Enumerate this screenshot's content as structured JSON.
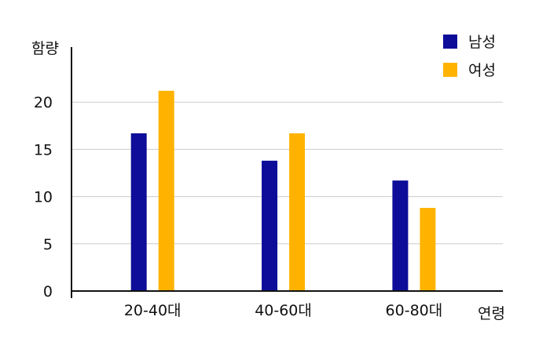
{
  "chart_data": {
    "type": "bar",
    "categories": [
      "20-40대",
      "40-60대",
      "60-80대"
    ],
    "series": [
      {
        "name": "남성",
        "values": [
          16.7,
          13.8,
          11.7
        ],
        "color": "#0d0d99"
      },
      {
        "name": "여성",
        "values": [
          21.2,
          16.7,
          8.8
        ],
        "color": "#ffb300"
      }
    ],
    "title": "",
    "xlabel": "연령",
    "ylabel": "함량",
    "ylim": [
      0,
      25
    ],
    "yticks": [
      0,
      5,
      10,
      15,
      20
    ],
    "grid": true,
    "legend_position": "top-right"
  }
}
